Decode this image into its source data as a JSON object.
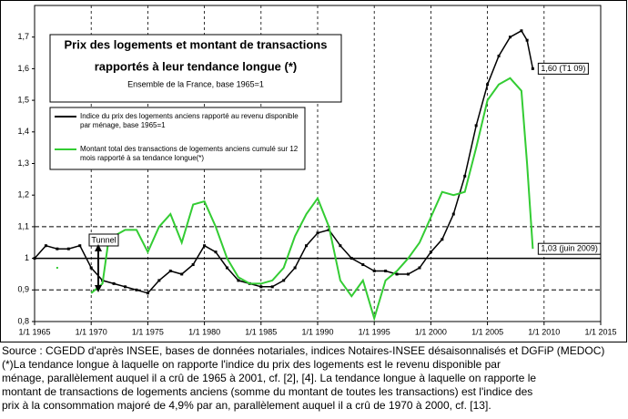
{
  "chart_data": {
    "type": "line",
    "title_lines": [
      "Prix des logements et montant de transactions",
      "rapportés à leur tendance longue (*)"
    ],
    "subtitle": "Ensemble de la France, base 1965=1",
    "xlim": [
      1965,
      2015
    ],
    "xticks": [
      {
        "value": 1965,
        "label": "1/1 1965"
      },
      {
        "value": 1970,
        "label": "1/1 1970"
      },
      {
        "value": 1975,
        "label": "1/1 1975"
      },
      {
        "value": 1980,
        "label": "1/1 1980"
      },
      {
        "value": 1985,
        "label": "1/1 1985"
      },
      {
        "value": 1990,
        "label": "1/1 1990"
      },
      {
        "value": 1995,
        "label": "1/1 1995"
      },
      {
        "value": 2000,
        "label": "1/1 2000"
      },
      {
        "value": 2005,
        "label": "1/1 2005"
      },
      {
        "value": 2010,
        "label": "1/1 2010"
      },
      {
        "value": 2015,
        "label": "1/1 2015"
      }
    ],
    "ylim": [
      0.8,
      1.8
    ],
    "yticks": [
      {
        "value": 0.8,
        "label": "0,8"
      },
      {
        "value": 0.9,
        "label": "0,9"
      },
      1,
      {
        "value": 1.1,
        "label": "1,1"
      },
      {
        "value": 1.2,
        "label": "1,2"
      },
      {
        "value": 1.3,
        "label": "1,3"
      },
      {
        "value": 1.4,
        "label": "1,4"
      },
      {
        "value": 1.5,
        "label": "1,5"
      },
      {
        "value": 1.6,
        "label": "1,6"
      },
      {
        "value": 1.7,
        "label": "1,7"
      }
    ],
    "x_grid": true,
    "reference_lines": [
      {
        "value": 0.9,
        "style": "dashed"
      },
      {
        "value": 1,
        "style": "solid"
      },
      {
        "value": 1.1,
        "style": "dashed"
      }
    ],
    "series": [
      {
        "name": "Indice du prix des logements anciens rapporté au revenu disponible par ménage, base 1965=1",
        "color": "#000000",
        "markers": true,
        "x": [
          1965,
          1966,
          1967,
          1968,
          1969,
          1970,
          1971,
          1972,
          1973,
          1974,
          1975,
          1976,
          1977,
          1978,
          1979,
          1980,
          1981,
          1982,
          1983,
          1984,
          1985,
          1986,
          1987,
          1988,
          1989,
          1990,
          1991,
          1992,
          1993,
          1994,
          1995,
          1996,
          1997,
          1998,
          1999,
          2000,
          2001,
          2002,
          2003,
          2004,
          2005,
          2006,
          2007,
          2008,
          2008.5,
          2009
        ],
        "values": [
          1.0,
          1.04,
          1.03,
          1.03,
          1.04,
          0.97,
          0.93,
          0.92,
          0.91,
          0.9,
          0.89,
          0.93,
          0.96,
          0.95,
          0.98,
          1.04,
          1.02,
          0.97,
          0.93,
          0.92,
          0.91,
          0.91,
          0.93,
          0.97,
          1.04,
          1.08,
          1.09,
          1.04,
          1.0,
          0.98,
          0.96,
          0.96,
          0.95,
          0.95,
          0.97,
          1.02,
          1.06,
          1.14,
          1.26,
          1.42,
          1.55,
          1.64,
          1.7,
          1.72,
          1.69,
          1.6
        ]
      },
      {
        "name": "Montant total des transactions de logements anciens cumulé sur 12 mois rapporté à sa tendance longue(*)",
        "color": "#33cc33",
        "markers": false,
        "x": [
          1967,
          1968,
          1970,
          1971,
          1971.5,
          1972,
          1973,
          1974,
          1975,
          1976,
          1977,
          1978,
          1979,
          1980,
          1981,
          1982,
          1983,
          1984,
          1985,
          1986,
          1987,
          1988,
          1989,
          1990,
          1991,
          1992,
          1993,
          1994,
          1995,
          1996,
          1997,
          1998,
          1999,
          2000,
          2001,
          2002,
          2003,
          2004,
          2005,
          2006,
          2007,
          2008,
          2008.5,
          2009
        ],
        "values": [
          0.97,
          null,
          0.89,
          0.92,
          1.05,
          1.07,
          1.09,
          1.09,
          1.02,
          1.1,
          1.14,
          1.05,
          1.17,
          1.18,
          1.1,
          1.0,
          0.94,
          0.92,
          0.92,
          0.93,
          0.97,
          1.07,
          1.14,
          1.19,
          1.1,
          0.93,
          0.88,
          0.93,
          0.81,
          0.93,
          0.96,
          1.0,
          1.05,
          1.13,
          1.21,
          1.2,
          1.21,
          1.35,
          1.5,
          1.55,
          1.57,
          1.53,
          1.3,
          1.03
        ]
      }
    ],
    "annotations": [
      {
        "text": "1,60 (T1 09)",
        "x": 2009,
        "y": 1.6
      },
      {
        "text": "1,03 (juin 2009)",
        "x": 2009,
        "y": 1.03
      }
    ],
    "tunnel_label": "Tunnel",
    "source": "Source : CGEDD d'après INSEE, bases de données notariales, indices Notaires-INSEE désaisonnalisés et DGFiP (MEDOC)",
    "note_lines": [
      "(*)La tendance longue à laquelle on rapporte l'indice du prix des logements est le revenu disponible par",
      "ménage, parallèlement auquel il a crû de 1965 à 2001, cf. [2], [4].  La tendance longue à laquelle on rapporte le",
      "montant de transactions de logements anciens (somme du montant de toutes les transactions) est l'indice des",
      "prix à la consommation majoré de 4,9% par an, parallèlement auquel il a crû de 1970 à 2000, cf. [13]."
    ]
  }
}
